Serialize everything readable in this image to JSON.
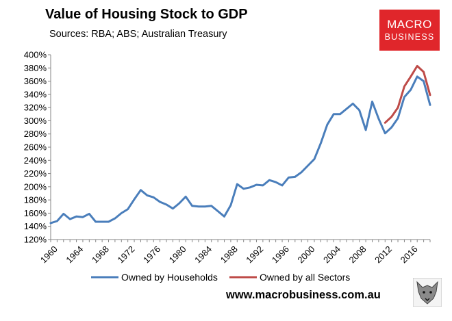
{
  "header": {
    "title": "Value of Housing Stock to GDP",
    "subtitle": "Sources: RBA; ABS; Australian Treasury"
  },
  "brand": {
    "line1": "MACRO",
    "line2": "BUSINESS",
    "color": "#e0262b"
  },
  "footer": {
    "website": "www.macrobusiness.com.au"
  },
  "chart_data": {
    "type": "line",
    "title": "Value of Housing Stock to GDP",
    "xlabel": "",
    "ylabel": "",
    "xlim": [
      1960,
      2019
    ],
    "ylim": [
      120,
      400
    ],
    "y_tick_values": [
      120,
      140,
      160,
      180,
      200,
      220,
      240,
      260,
      280,
      300,
      320,
      340,
      360,
      380,
      400
    ],
    "y_tick_labels": [
      "120%",
      "140%",
      "160%",
      "180%",
      "200%",
      "220%",
      "240%",
      "260%",
      "280%",
      "300%",
      "320%",
      "340%",
      "360%",
      "380%",
      "400%"
    ],
    "x_tick_values": [
      1960,
      1964,
      1968,
      1972,
      1976,
      1980,
      1984,
      1988,
      1992,
      1996,
      2000,
      2004,
      2008,
      2012,
      2016
    ],
    "x_tick_labels": [
      "1960",
      "1964",
      "1968",
      "1972",
      "1976",
      "1980",
      "1984",
      "1988",
      "1992",
      "1996",
      "2000",
      "2004",
      "2008",
      "2012",
      "2016"
    ],
    "grid": false,
    "legend": "bottom",
    "series": [
      {
        "name": "Owned by Households",
        "color": "#4a7ebb",
        "x": [
          1960,
          1961,
          1962,
          1963,
          1964,
          1965,
          1966,
          1967,
          1968,
          1969,
          1970,
          1971,
          1972,
          1973,
          1974,
          1975,
          1976,
          1977,
          1978,
          1979,
          1980,
          1981,
          1982,
          1983,
          1984,
          1985,
          1986,
          1987,
          1988,
          1989,
          1990,
          1991,
          1992,
          1993,
          1994,
          1995,
          1996,
          1997,
          1998,
          1999,
          2000,
          2001,
          2002,
          2003,
          2004,
          2005,
          2006,
          2007,
          2008,
          2009,
          2010,
          2011,
          2012,
          2013,
          2014,
          2015,
          2016,
          2017,
          2018,
          2019
        ],
        "values": [
          145,
          148,
          159,
          151,
          155,
          154,
          159,
          147,
          147,
          147,
          152,
          160,
          166,
          181,
          195,
          187,
          184,
          177,
          173,
          167,
          175,
          185,
          171,
          170,
          170,
          171,
          163,
          155,
          172,
          204,
          197,
          199,
          203,
          202,
          210,
          207,
          202,
          214,
          215,
          222,
          232,
          242,
          266,
          294,
          310,
          310,
          318,
          326,
          316,
          286,
          329,
          303,
          281,
          290,
          304,
          336,
          347,
          367,
          360,
          324
        ]
      },
      {
        "name": "Owned by all Sectors",
        "color": "#be4b48",
        "x": [
          2012,
          2013,
          2014,
          2015,
          2016,
          2017,
          2018,
          2019
        ],
        "values": [
          297,
          306,
          320,
          352,
          367,
          383,
          374,
          339
        ]
      }
    ]
  }
}
